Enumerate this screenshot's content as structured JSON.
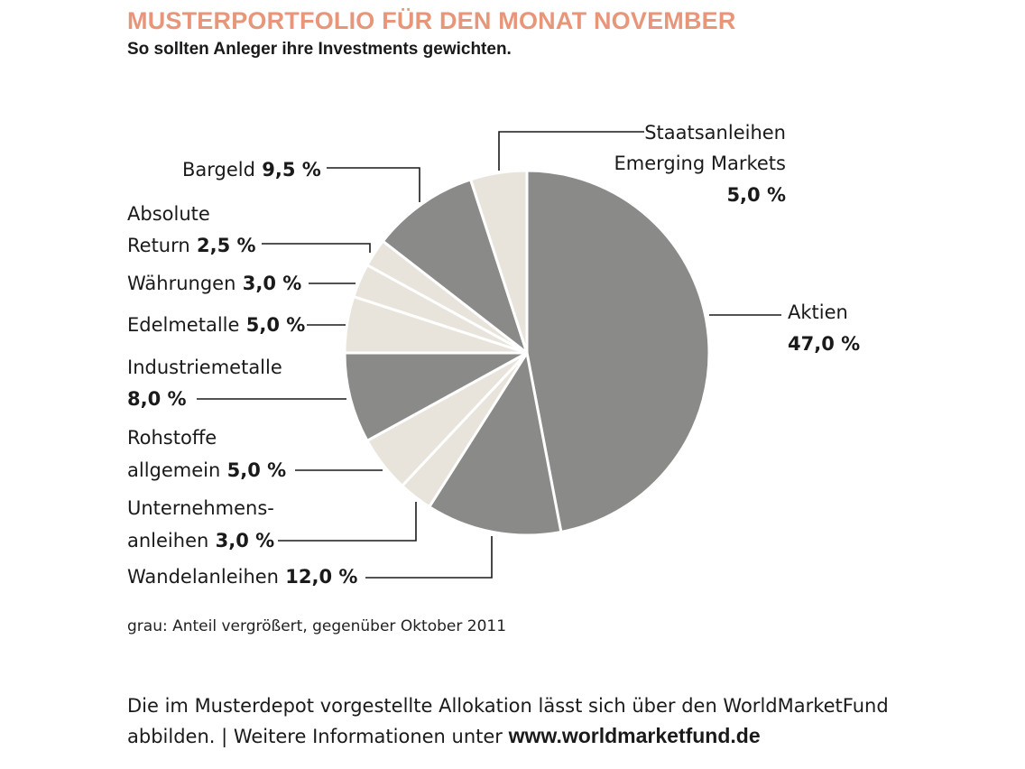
{
  "colors": {
    "title": "#e8967a",
    "gray": "#8a8b89",
    "light": "#e8e4dc",
    "line": "#1a1a1a",
    "edge": "#ffffff"
  },
  "header": {
    "title": "MUSTERPORTFOLIO FÜR DEN MONAT NOVEMBER",
    "subtitle": "So sollten Anleger ihre Investments gewichten."
  },
  "note": "grau: Anteil vergrößert, gegenüber Oktober 2011",
  "footer": {
    "line1": "Die im Musterdepot vorgestellte Allokation lässt sich über den WorldMarketFund",
    "line2_prefix": "abbilden. | Weitere Informationen unter ",
    "url": "www.worldmarketfund.de"
  },
  "chart_data": {
    "type": "pie",
    "title": "MUSTERPORTFOLIO FÜR DEN MONAT NOVEMBER",
    "subtitle": "So sollten Anleger ihre Investments gewichten.",
    "slices": [
      {
        "name": "Aktien",
        "label_lines": [
          "Aktien"
        ],
        "value_text": "47,0 %",
        "value": 47.0,
        "shade": "gray"
      },
      {
        "name": "Wandelanleihen",
        "label_lines": [
          "Wandelanleihen"
        ],
        "value_text": "12,0 %",
        "value": 12.0,
        "shade": "gray"
      },
      {
        "name": "Unternehmensanleihen",
        "label_lines": [
          "Unternehmens-",
          "anleihen"
        ],
        "value_text": "3,0 %",
        "value": 3.0,
        "shade": "light"
      },
      {
        "name": "Rohstoffe allgemein",
        "label_lines": [
          "Rohstoffe",
          "allgemein"
        ],
        "value_text": "5,0 %",
        "value": 5.0,
        "shade": "light"
      },
      {
        "name": "Industriemetalle",
        "label_lines": [
          "Industriemetalle"
        ],
        "value_text": "8,0 %",
        "value": 8.0,
        "shade": "gray"
      },
      {
        "name": "Edelmetalle",
        "label_lines": [
          "Edelmetalle"
        ],
        "value_text": "5,0 %",
        "value": 5.0,
        "shade": "light"
      },
      {
        "name": "Währungen",
        "label_lines": [
          "Währungen"
        ],
        "value_text": "3,0 %",
        "value": 3.0,
        "shade": "light"
      },
      {
        "name": "Absolute Return",
        "label_lines": [
          "Absolute",
          "Return"
        ],
        "value_text": "2,5 %",
        "value": 2.5,
        "shade": "light"
      },
      {
        "name": "Bargeld",
        "label_lines": [
          "Bargeld"
        ],
        "value_text": "9,5 %",
        "value": 9.5,
        "shade": "gray"
      },
      {
        "name": "Staatsanleihen Emerging Markets",
        "label_lines": [
          "Staatsanleihen",
          "Emerging Markets"
        ],
        "value_text": "5,0 %",
        "value": 5.0,
        "shade": "light"
      }
    ]
  }
}
